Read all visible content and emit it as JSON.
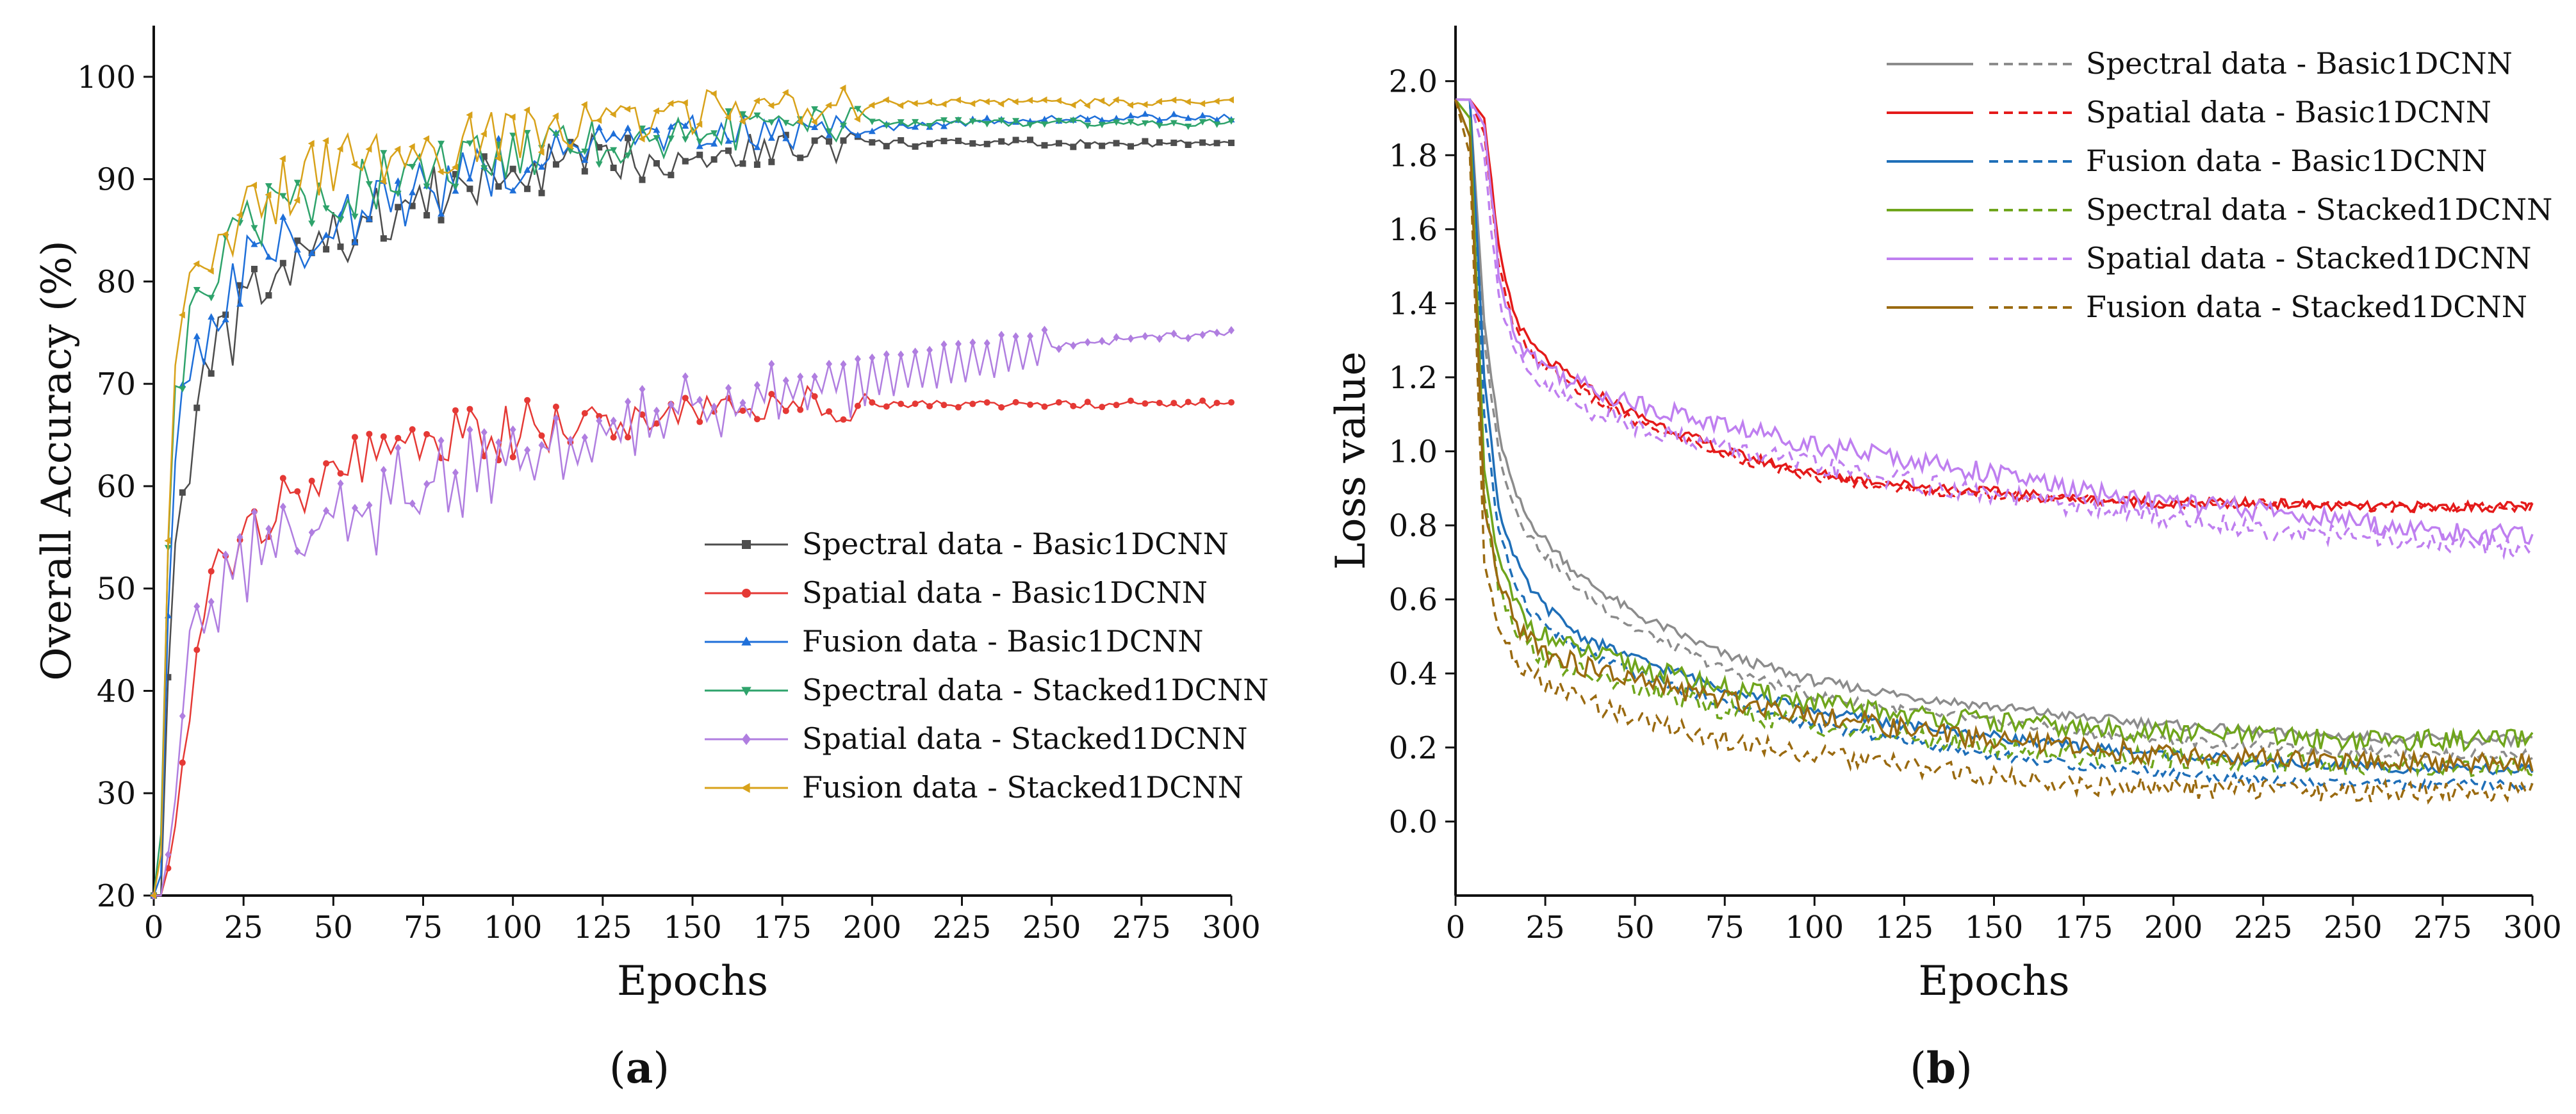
{
  "panels": [
    {
      "label_open": "(",
      "label_letter": "a",
      "label_close": ")"
    },
    {
      "label_open": "(",
      "label_letter": "b",
      "label_close": ")"
    }
  ],
  "chart_data": [
    {
      "type": "line",
      "xlabel": "Epochs",
      "ylabel": "Overall Accuracy (%)",
      "xlim": [
        0,
        300
      ],
      "ylim": [
        20,
        105
      ],
      "xticks": [
        0,
        25,
        50,
        75,
        100,
        125,
        150,
        175,
        200,
        225,
        250,
        275,
        300
      ],
      "yticks": [
        20,
        30,
        40,
        50,
        60,
        70,
        80,
        90,
        100
      ],
      "grid": false,
      "legend_position": "bottom-right",
      "marker_note": "lines with small markers",
      "series": [
        {
          "name": "Spectral data - Basic1DCNN",
          "color": "#4d4d4d",
          "marker": "square",
          "x": [
            0,
            2,
            5,
            10,
            15,
            20,
            25,
            30,
            40,
            50,
            60,
            75,
            100,
            125,
            150,
            175,
            200,
            225,
            250,
            275,
            300
          ],
          "y": [
            20,
            20,
            52,
            64,
            71,
            74,
            77,
            79,
            82,
            84,
            86,
            88,
            90.5,
            92,
            92.5,
            93,
            93.5,
            93.5,
            93.5,
            93.5,
            93.5
          ]
        },
        {
          "name": "Spatial data - Basic1DCNN",
          "color": "#e53935",
          "marker": "circle",
          "x": [
            0,
            2,
            5,
            10,
            15,
            20,
            25,
            30,
            40,
            50,
            60,
            75,
            100,
            125,
            150,
            175,
            200,
            225,
            250,
            275,
            300
          ],
          "y": [
            20,
            20,
            24,
            38,
            47,
            53,
            56,
            58,
            60,
            61.5,
            62.5,
            64,
            65.5,
            66.5,
            67.5,
            68,
            68,
            68,
            68,
            68,
            68
          ]
        },
        {
          "name": "Fusion data - Basic1DCNN",
          "color": "#1e6fd9",
          "marker": "triangle-up",
          "x": [
            0,
            2,
            5,
            10,
            15,
            20,
            25,
            30,
            40,
            50,
            60,
            75,
            100,
            125,
            150,
            175,
            200,
            225,
            250,
            275,
            300
          ],
          "y": [
            20,
            22,
            60,
            72,
            76,
            79,
            80.5,
            82,
            84,
            85.5,
            87,
            89,
            91.5,
            93,
            94,
            94.5,
            95,
            95.5,
            96,
            96,
            96
          ]
        },
        {
          "name": "Spectral data - Stacked1DCNN",
          "color": "#2ea36b",
          "marker": "triangle-down",
          "x": [
            0,
            2,
            5,
            10,
            15,
            20,
            25,
            30,
            40,
            50,
            60,
            75,
            100,
            125,
            150,
            175,
            200,
            225,
            250,
            275,
            300
          ],
          "y": [
            20,
            26,
            68,
            77,
            80,
            82,
            84,
            85.5,
            87.5,
            89,
            90,
            91,
            92.5,
            93.5,
            94.5,
            95,
            95.5,
            95.5,
            95.5,
            95.5,
            95.5
          ]
        },
        {
          "name": "Spatial data - Stacked1DCNN",
          "color": "#b07ee0",
          "marker": "diamond",
          "x": [
            0,
            2,
            5,
            10,
            15,
            20,
            25,
            30,
            40,
            50,
            60,
            75,
            100,
            125,
            150,
            175,
            200,
            225,
            250,
            275,
            300
          ],
          "y": [
            20,
            20,
            26,
            43,
            48,
            50,
            51.5,
            53,
            55,
            56.5,
            58,
            60,
            63,
            65.5,
            67.5,
            69,
            70.5,
            72,
            73.5,
            74.5,
            75
          ]
        },
        {
          "name": "Fusion data - Stacked1DCNN",
          "color": "#d8a21a",
          "marker": "triangle-left",
          "x": [
            0,
            2,
            5,
            10,
            15,
            20,
            25,
            30,
            40,
            50,
            60,
            75,
            100,
            125,
            150,
            175,
            200,
            225,
            250,
            275,
            300
          ],
          "y": [
            20,
            24,
            70,
            79,
            82,
            84,
            86,
            87.5,
            89.5,
            91,
            92,
            93,
            94.5,
            95.5,
            96.5,
            97,
            97.5,
            97.5,
            97.5,
            97.5,
            97.5
          ]
        }
      ]
    },
    {
      "type": "line",
      "xlabel": "Epochs",
      "ylabel": "Loss value",
      "xlim": [
        0,
        300
      ],
      "ylim": [
        -0.2,
        2.15
      ],
      "xticks": [
        0,
        25,
        50,
        75,
        100,
        125,
        150,
        175,
        200,
        225,
        250,
        275,
        300
      ],
      "yticks": [
        0.0,
        0.2,
        0.4,
        0.6,
        0.8,
        1.0,
        1.2,
        1.4,
        1.6,
        1.8,
        2.0
      ],
      "grid": false,
      "legend_position": "top-right",
      "line_styles": "solid = one curve, dashed = second curve of the same series",
      "series": [
        {
          "name": "Spectral data - Basic1DCNN",
          "color": "#8c8c8c",
          "x": [
            0,
            4,
            8,
            12,
            16,
            20,
            25,
            35,
            50,
            75,
            100,
            125,
            150,
            175,
            200,
            225,
            250,
            275,
            300
          ],
          "solid": [
            1.95,
            1.95,
            1.35,
            1.05,
            0.9,
            0.82,
            0.76,
            0.66,
            0.56,
            0.45,
            0.38,
            0.34,
            0.31,
            0.28,
            0.26,
            0.24,
            0.23,
            0.22,
            0.22
          ],
          "dashed": [
            1.95,
            1.95,
            1.3,
            1.0,
            0.86,
            0.78,
            0.72,
            0.62,
            0.52,
            0.41,
            0.34,
            0.3,
            0.27,
            0.24,
            0.22,
            0.2,
            0.19,
            0.18,
            0.18
          ]
        },
        {
          "name": "Spatial data - Basic1DCNN",
          "color": "#e41a1a",
          "x": [
            0,
            4,
            8,
            12,
            16,
            20,
            25,
            35,
            50,
            75,
            100,
            125,
            150,
            175,
            200,
            225,
            250,
            275,
            300
          ],
          "solid": [
            1.95,
            1.95,
            1.9,
            1.55,
            1.38,
            1.3,
            1.25,
            1.18,
            1.1,
            1.0,
            0.94,
            0.91,
            0.89,
            0.87,
            0.86,
            0.86,
            0.85,
            0.85,
            0.85
          ],
          "dashed": [
            1.95,
            1.95,
            1.86,
            1.5,
            1.34,
            1.27,
            1.23,
            1.16,
            1.08,
            0.99,
            0.93,
            0.9,
            0.88,
            0.87,
            0.86,
            0.86,
            0.85,
            0.85,
            0.85
          ]
        },
        {
          "name": "Fusion data - Basic1DCNN",
          "color": "#1f6fb8",
          "x": [
            0,
            4,
            8,
            12,
            16,
            20,
            25,
            35,
            50,
            75,
            100,
            125,
            150,
            175,
            200,
            225,
            250,
            275,
            300
          ],
          "solid": [
            1.95,
            1.95,
            1.2,
            0.85,
            0.72,
            0.64,
            0.58,
            0.5,
            0.44,
            0.36,
            0.3,
            0.26,
            0.23,
            0.2,
            0.18,
            0.16,
            0.15,
            0.14,
            0.14
          ],
          "dashed": [
            1.95,
            1.95,
            1.1,
            0.78,
            0.66,
            0.58,
            0.53,
            0.46,
            0.4,
            0.32,
            0.26,
            0.22,
            0.18,
            0.15,
            0.13,
            0.11,
            0.1,
            0.1,
            0.1
          ]
        },
        {
          "name": "Spectral data - Stacked1DCNN",
          "color": "#6fa51c",
          "x": [
            0,
            4,
            8,
            12,
            16,
            20,
            25,
            35,
            50,
            75,
            100,
            125,
            150,
            175,
            200,
            225,
            250,
            275,
            300
          ],
          "solid": [
            1.95,
            1.9,
            0.95,
            0.7,
            0.6,
            0.54,
            0.5,
            0.46,
            0.42,
            0.36,
            0.32,
            0.29,
            0.27,
            0.25,
            0.24,
            0.23,
            0.22,
            0.22,
            0.22
          ],
          "dashed": [
            1.95,
            1.85,
            0.88,
            0.64,
            0.54,
            0.48,
            0.44,
            0.4,
            0.36,
            0.3,
            0.26,
            0.23,
            0.2,
            0.18,
            0.17,
            0.16,
            0.15,
            0.15,
            0.15
          ]
        },
        {
          "name": "Spatial data - Stacked1DCNN",
          "color": "#bf7ff0",
          "x": [
            0,
            4,
            8,
            12,
            16,
            20,
            25,
            35,
            50,
            75,
            100,
            125,
            150,
            175,
            200,
            225,
            250,
            275,
            300
          ],
          "solid": [
            1.95,
            1.95,
            1.88,
            1.5,
            1.33,
            1.27,
            1.23,
            1.18,
            1.13,
            1.07,
            1.02,
            0.98,
            0.94,
            0.89,
            0.86,
            0.84,
            0.81,
            0.78,
            0.77
          ],
          "dashed": [
            1.95,
            1.95,
            1.8,
            1.42,
            1.27,
            1.21,
            1.17,
            1.12,
            1.07,
            1.01,
            0.96,
            0.92,
            0.88,
            0.85,
            0.82,
            0.79,
            0.77,
            0.75,
            0.74
          ]
        },
        {
          "name": "Fusion data - Stacked1DCNN",
          "color": "#9a6a10",
          "x": [
            0,
            4,
            8,
            12,
            16,
            20,
            25,
            35,
            50,
            75,
            100,
            125,
            150,
            175,
            200,
            225,
            250,
            275,
            300
          ],
          "solid": [
            1.95,
            1.85,
            0.85,
            0.64,
            0.55,
            0.5,
            0.46,
            0.42,
            0.38,
            0.33,
            0.29,
            0.25,
            0.22,
            0.2,
            0.18,
            0.17,
            0.16,
            0.16,
            0.16
          ],
          "dashed": [
            1.95,
            1.8,
            0.7,
            0.52,
            0.45,
            0.4,
            0.37,
            0.33,
            0.28,
            0.22,
            0.18,
            0.15,
            0.12,
            0.1,
            0.09,
            0.09,
            0.08,
            0.08,
            0.08
          ]
        }
      ]
    }
  ]
}
